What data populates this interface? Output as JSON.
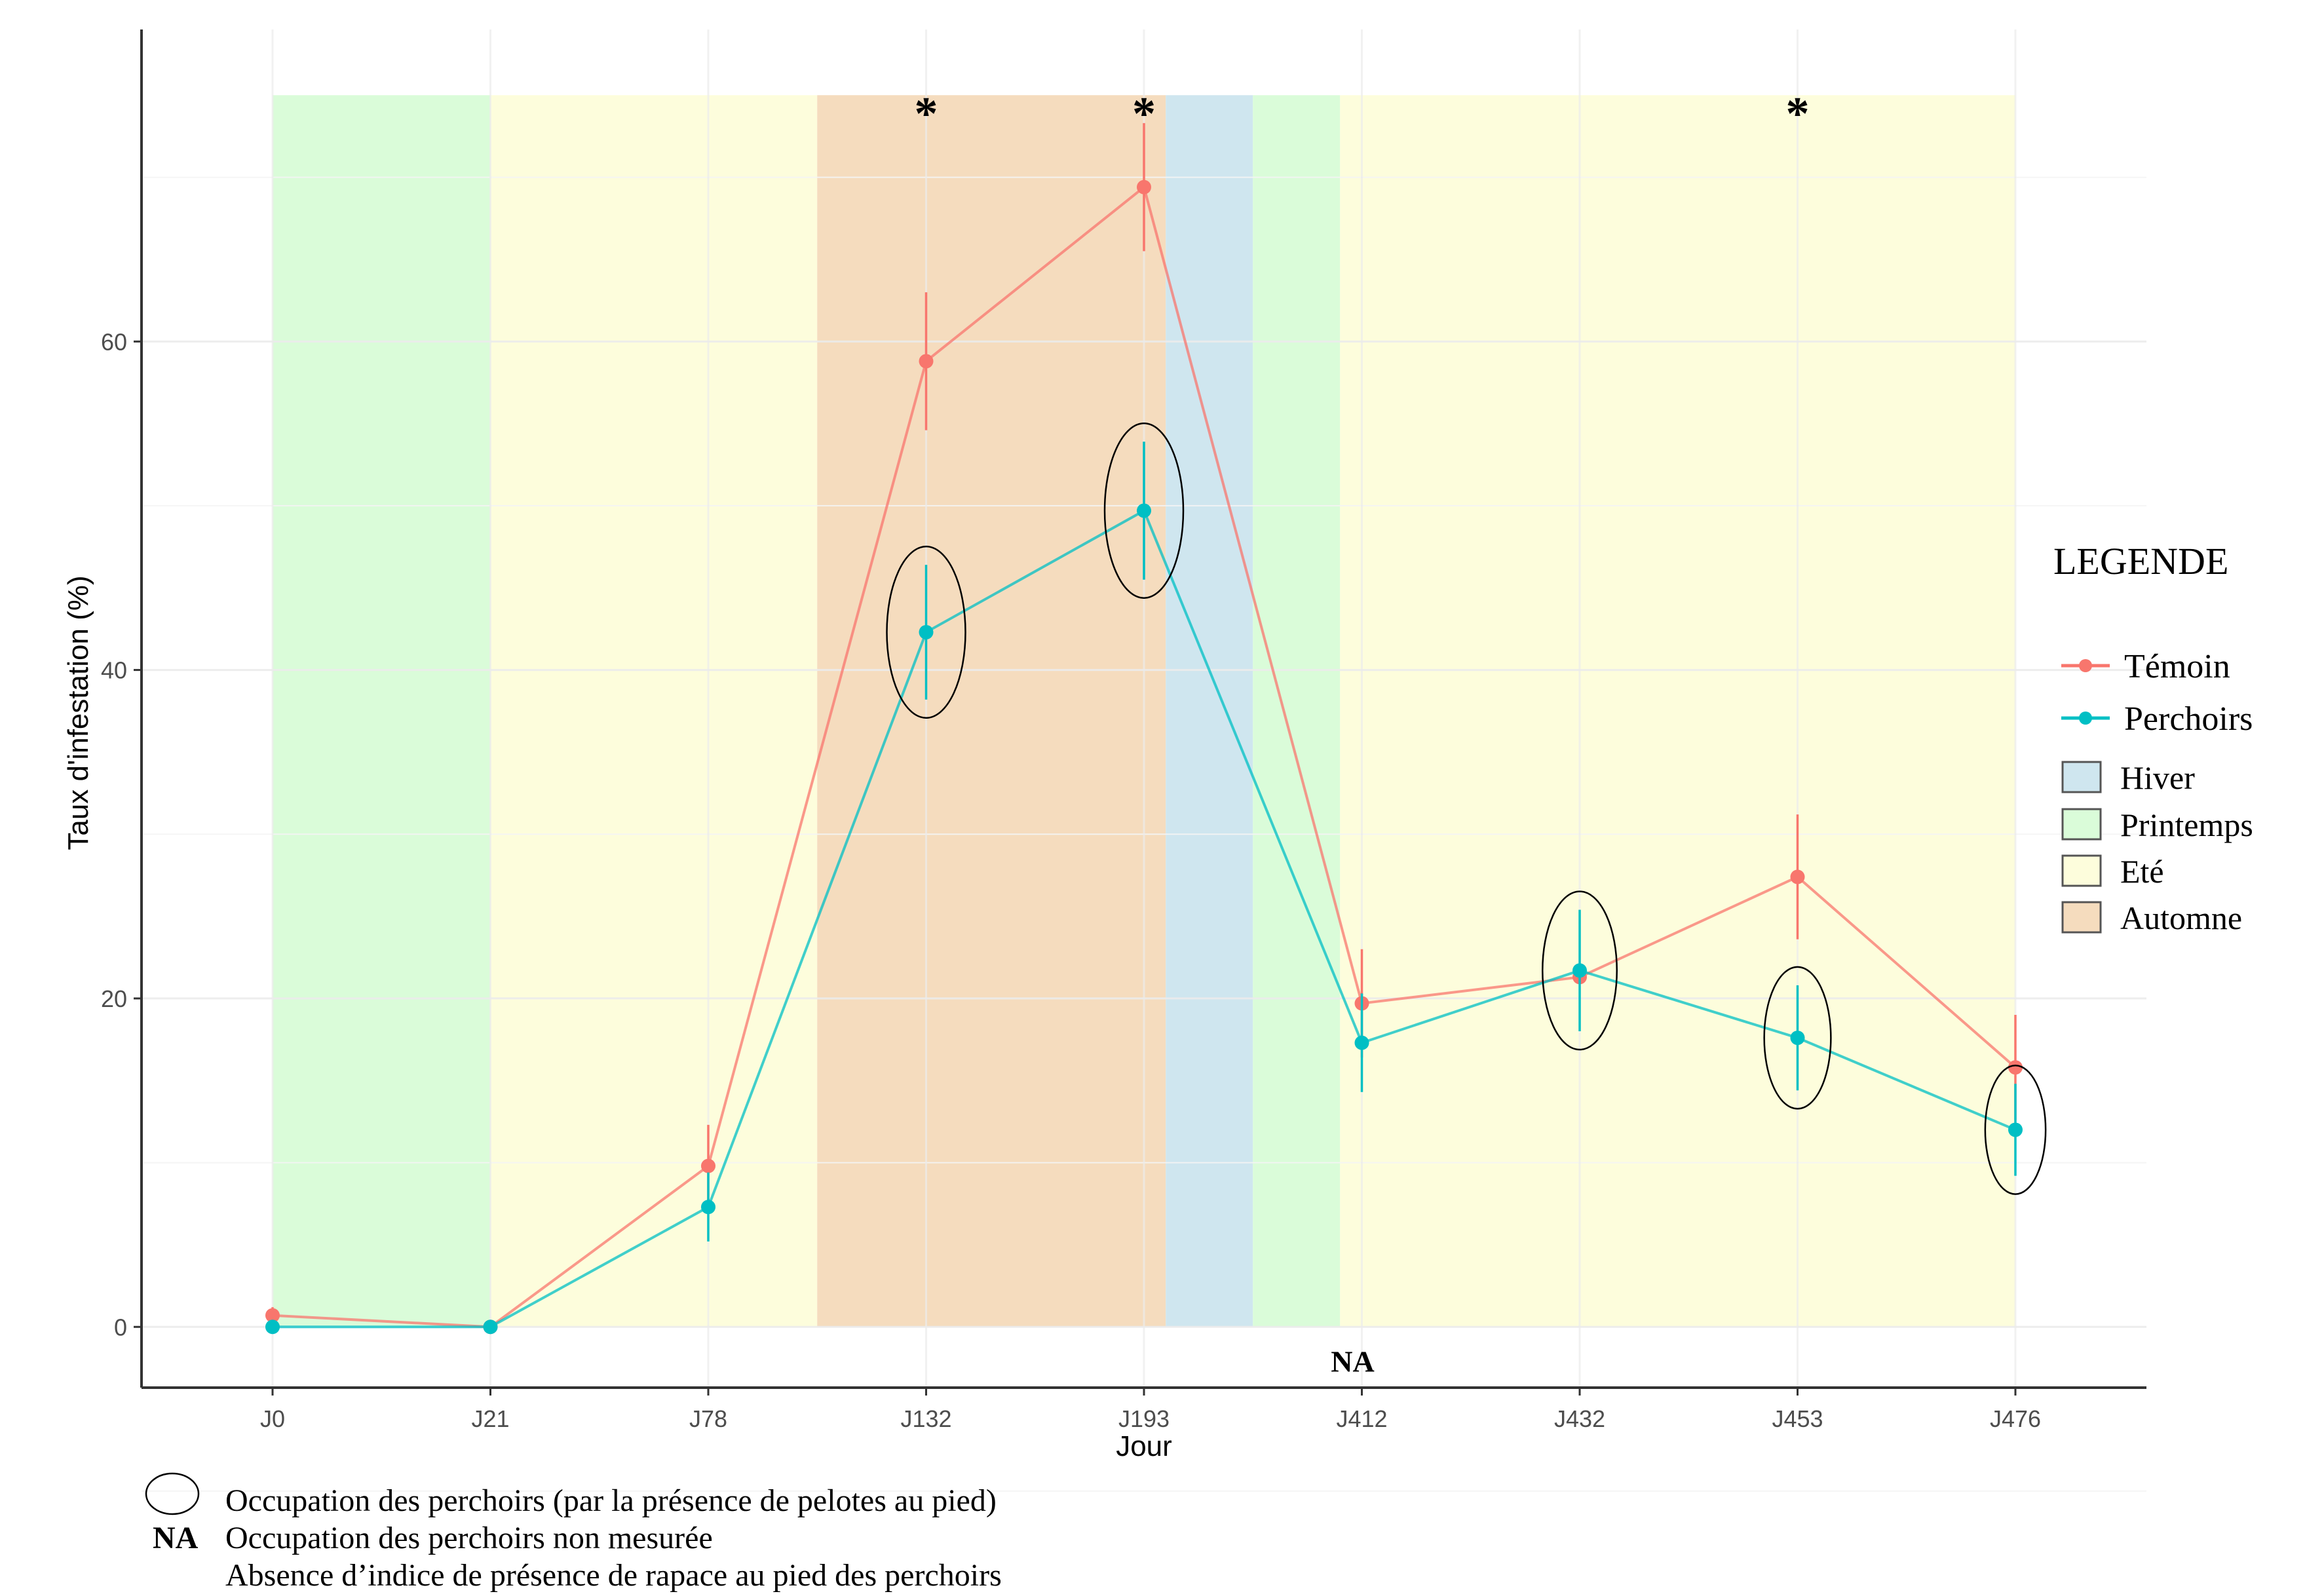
{
  "chart_data": {
    "type": "line",
    "xlabel": "Jour",
    "ylabel": "Taux d'infestation (%)",
    "categories": [
      "J0",
      "J21",
      "J78",
      "J132",
      "J193",
      "J412",
      "J432",
      "J453",
      "J476"
    ],
    "yticks": [
      0,
      20,
      40,
      60
    ],
    "ylim": [
      -3.7,
      79
    ],
    "grid": true,
    "legend_position": "right",
    "series": [
      {
        "name": "Témoin",
        "color": "#f8766d",
        "values": [
          0.7,
          0.0,
          9.8,
          58.8,
          69.4,
          19.7,
          21.3,
          27.4,
          15.8
        ],
        "error": [
          0.5,
          0.0,
          2.5,
          4.2,
          3.9,
          3.3,
          0.0,
          3.8,
          3.2
        ]
      },
      {
        "name": "Perchoirs",
        "color": "#00bfc4",
        "values": [
          0.0,
          0.0,
          7.3,
          42.3,
          49.7,
          17.3,
          21.7,
          17.6,
          12.0
        ],
        "error": [
          0.0,
          0.0,
          2.1,
          4.1,
          4.2,
          3.0,
          3.7,
          3.2,
          2.8
        ]
      }
    ],
    "seasons": [
      {
        "name": "Printemps",
        "color": "#dafcd9",
        "x_start": 0,
        "x_end": 1
      },
      {
        "name": "Eté",
        "color": "#fdfddc",
        "x_start": 1,
        "x_end": 2.5
      },
      {
        "name": "Automne",
        "color": "#f5dcbe",
        "x_start": 2.5,
        "x_end": 4.1
      },
      {
        "name": "Hiver",
        "color": "#cfe6ef",
        "x_start": 4.1,
        "x_end": 4.5
      },
      {
        "name": "Printemps",
        "color": "#dafcd9",
        "x_start": 4.5,
        "x_end": 4.9
      },
      {
        "name": "Eté",
        "color": "#fdfddc",
        "x_start": 4.9,
        "x_end": 8
      }
    ],
    "season_ymax": 75,
    "significance_marks": [
      {
        "x_index": 3,
        "label": "*"
      },
      {
        "x_index": 4,
        "label": "*"
      },
      {
        "x_index": 7,
        "label": "*"
      }
    ],
    "occupied_perches": [
      3,
      4,
      6,
      7,
      8
    ],
    "na_marks": [
      {
        "x_index": 5,
        "label": "NA"
      }
    ]
  },
  "legend": {
    "title": "LEGENDE",
    "series": [
      {
        "label": "Témoin",
        "color": "#f8766d"
      },
      {
        "label": "Perchoirs",
        "color": "#00bfc4"
      }
    ],
    "seasons": [
      {
        "label": "Hiver",
        "color": "#cfe6ef"
      },
      {
        "label": "Printemps",
        "color": "#dafcd9"
      },
      {
        "label": "Eté",
        "color": "#fdfddc"
      },
      {
        "label": "Automne",
        "color": "#f5dcbe"
      }
    ]
  },
  "notes": {
    "ellipse_text": "Occupation des perchoirs (par la présence de pelotes au pied)",
    "na_symbol": "NA",
    "na_text": "Occupation des perchoirs non mesurée",
    "absence_text": "Absence d’indice de présence de rapace au pied des perchoirs"
  }
}
